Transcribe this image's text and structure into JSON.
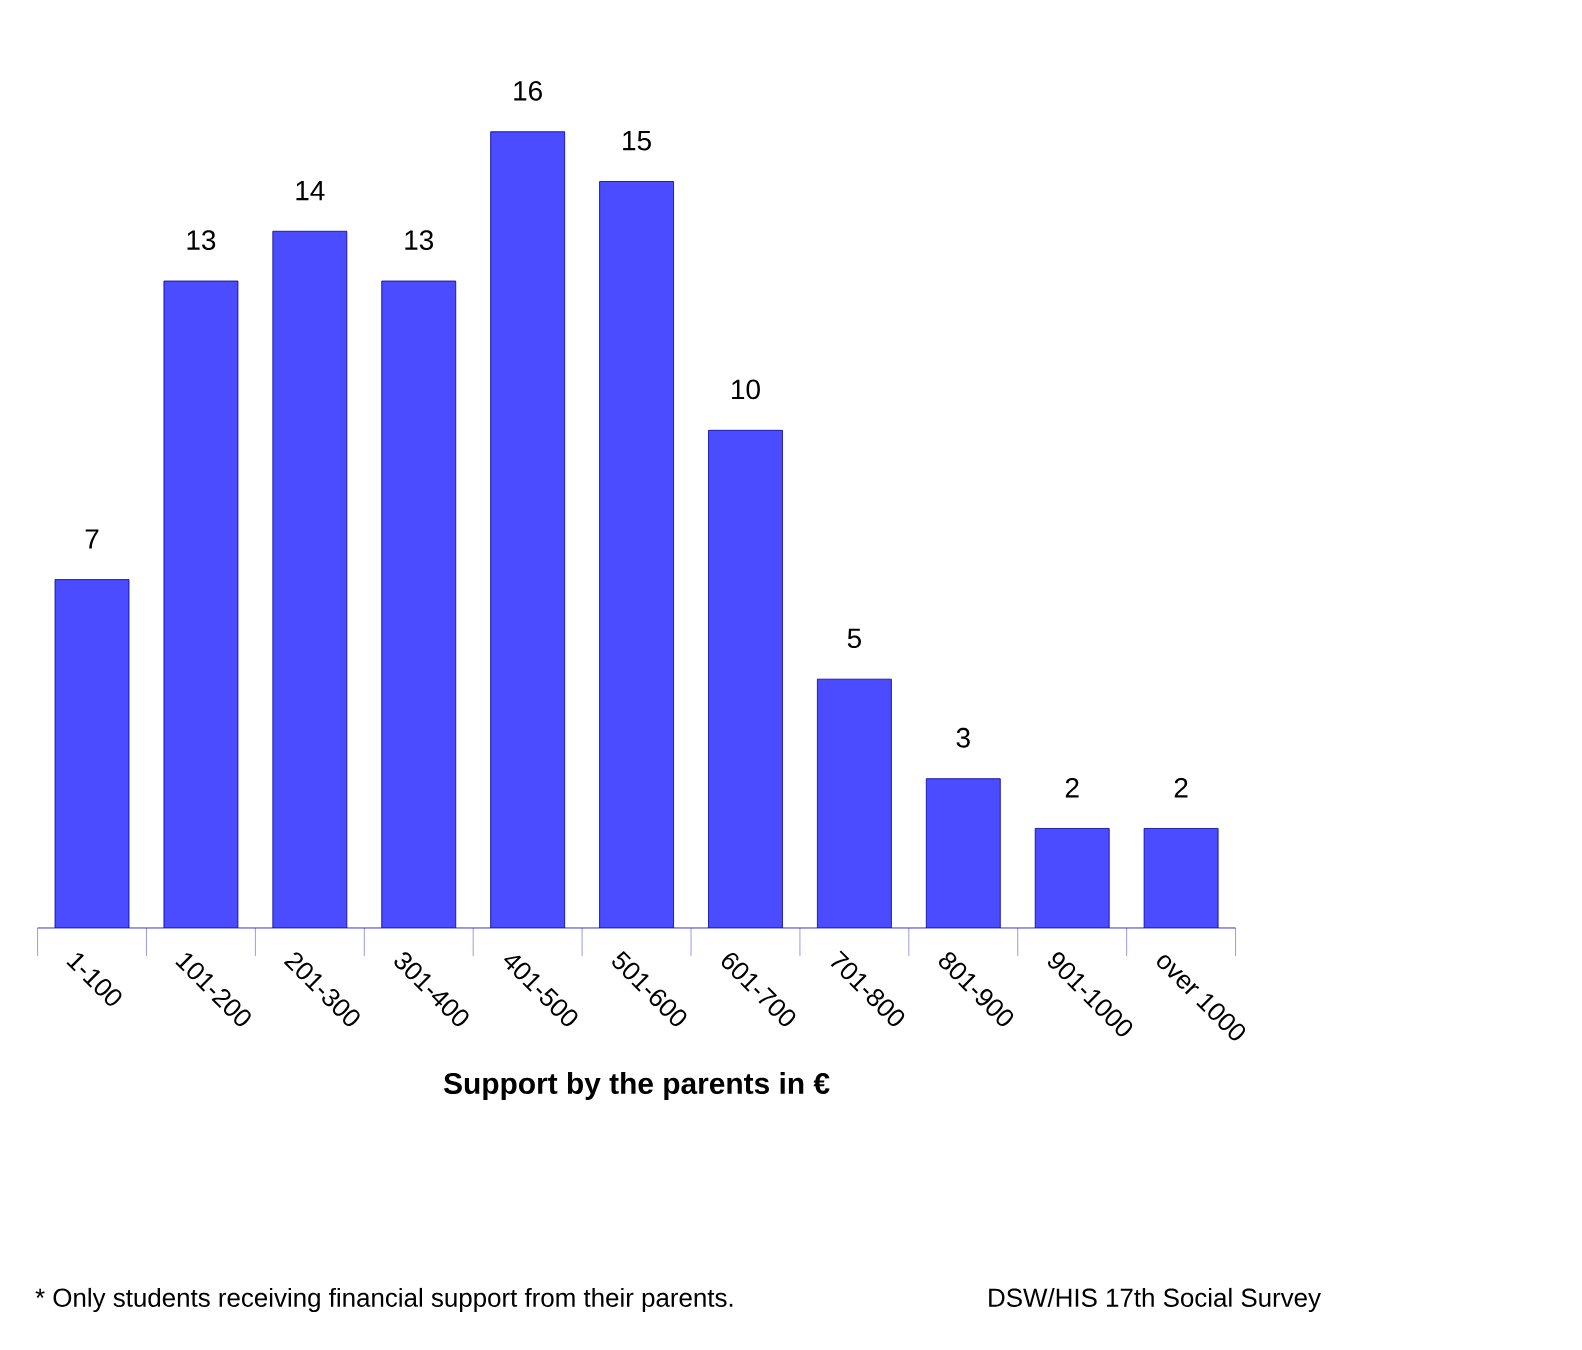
{
  "chart_data": {
    "type": "bar",
    "xlabel": "Support by the parents in €",
    "categories": [
      "1-100",
      "101-200",
      "201-300",
      "301-400",
      "401-500",
      "501-600",
      "601-700",
      "701-800",
      "801-900",
      "901-1000",
      "over 1000"
    ],
    "values": [
      7,
      13,
      14,
      13,
      16,
      15,
      10,
      5,
      3,
      2,
      2
    ],
    "color": "#4b4bff",
    "data_labels": true,
    "annotations": [
      "* Only students receiving financial support from their parents.",
      "DSW/HIS 17th Social Survey"
    ]
  }
}
